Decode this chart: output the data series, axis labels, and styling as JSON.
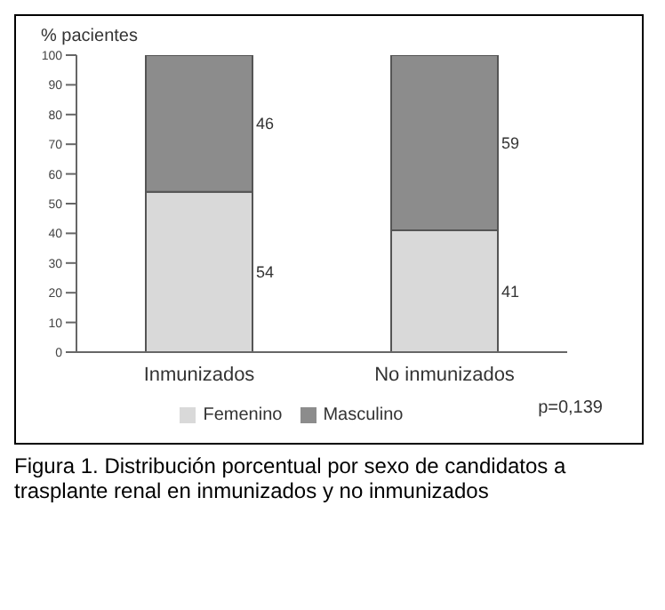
{
  "chart_data": {
    "type": "bar",
    "stacked": true,
    "ylabel": "% pacientes",
    "categories": [
      "Inmunizados",
      "No inmunizados"
    ],
    "series": [
      {
        "name": "Femenino",
        "color": "#d9d9d9",
        "values": [
          54,
          41
        ]
      },
      {
        "name": "Masculino",
        "color": "#8c8c8c",
        "values": [
          46,
          59
        ]
      }
    ],
    "ylim": [
      0,
      100
    ],
    "yticks": [
      0,
      10,
      20,
      30,
      40,
      50,
      60,
      70,
      80,
      90,
      100
    ],
    "data_labels": true,
    "legend": "bottom",
    "grid": false,
    "annotations": [
      "p=0,139",
      "Figura 1. Distribución porcentual por sexo de candidatos a trasplante renal en inmunizados y no inmunizados"
    ]
  }
}
